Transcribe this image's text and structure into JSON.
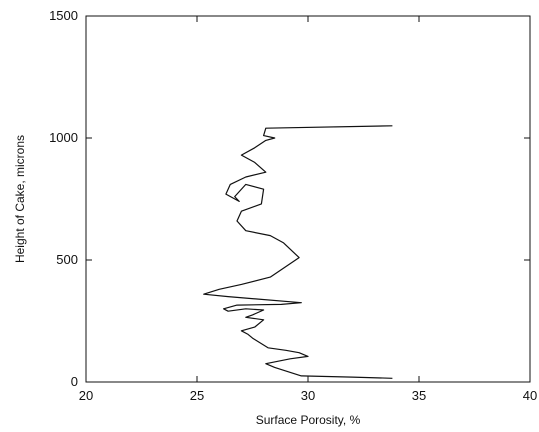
{
  "chart_data": {
    "type": "line",
    "title": "",
    "xlabel": "Surface Porosity, %",
    "ylabel": "Height of Cake, microns",
    "xlim": [
      20,
      40
    ],
    "ylim": [
      0,
      1500
    ],
    "xticks": [
      "20",
      "25",
      "30",
      "35",
      "40"
    ],
    "yticks": [
      "0",
      "500",
      "1000",
      "1500"
    ],
    "grid": false,
    "line_color": "#111111",
    "series": [
      {
        "x": [
          33.8,
          32.0,
          29.7,
          28.5,
          28.1,
          29.2,
          30.0,
          29.6,
          29.0,
          28.2,
          27.5,
          27.3,
          27.0,
          27.6,
          28.0,
          27.2,
          27.5,
          28.0,
          27.2,
          26.4,
          26.2,
          26.8,
          28.8,
          29.7,
          26.4,
          25.3,
          26.0,
          27.0,
          28.3,
          29.6,
          28.9,
          28.3,
          27.2,
          26.8,
          27.0,
          27.9,
          28.0,
          27.2,
          26.7,
          26.9,
          26.3,
          26.5,
          27.2,
          28.1,
          27.6,
          27.0,
          27.6,
          28.1,
          28.5,
          28.0,
          28.1,
          33.8
        ],
        "y": [
          15,
          20,
          25,
          60,
          75,
          95,
          105,
          120,
          130,
          140,
          180,
          195,
          210,
          225,
          255,
          265,
          275,
          295,
          300,
          290,
          300,
          315,
          318,
          325,
          350,
          360,
          380,
          400,
          430,
          510,
          570,
          600,
          620,
          660,
          700,
          730,
          790,
          810,
          760,
          740,
          770,
          810,
          840,
          860,
          900,
          930,
          960,
          990,
          1000,
          1010,
          1040,
          1050
        ]
      }
    ]
  }
}
